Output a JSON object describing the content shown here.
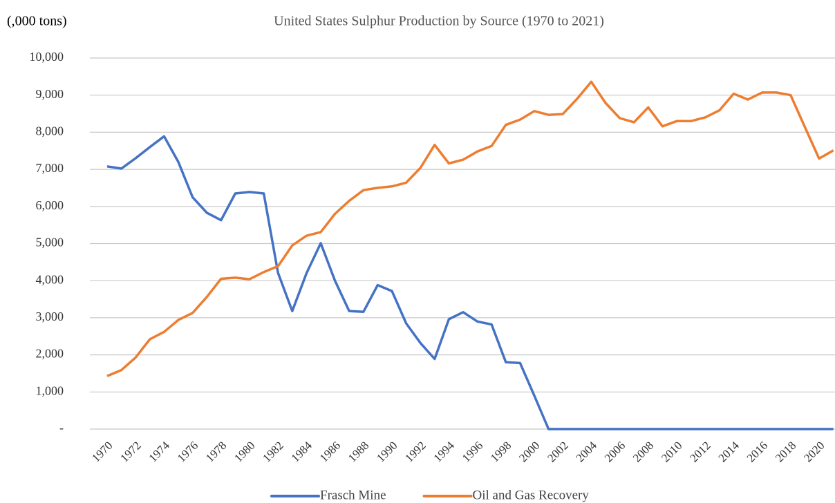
{
  "chart_data": {
    "type": "line",
    "title": "United States Sulphur Production by Source (1970 to 2021)",
    "y_label": "(,000 tons)",
    "categories": [
      "1970",
      null,
      "1972",
      null,
      "1974",
      null,
      "1976",
      null,
      "1978",
      null,
      "1980",
      null,
      "1982",
      null,
      "1984",
      null,
      "1986",
      null,
      "1988",
      null,
      "1990",
      null,
      "1992",
      null,
      "1994",
      null,
      "1996",
      null,
      "1998",
      null,
      "2000",
      null,
      "2002",
      null,
      "2004",
      null,
      "2006",
      null,
      "2008",
      null,
      "2010",
      null,
      "2012",
      null,
      "2014",
      null,
      "2016",
      null,
      "2018",
      null,
      "2020",
      null
    ],
    "series": [
      {
        "name": "Frasch Mine",
        "color": "#4472c4",
        "values": [
          7080,
          7020,
          7300,
          7600,
          7890,
          7200,
          6250,
          5830,
          5630,
          6350,
          6390,
          6350,
          4210,
          3180,
          4200,
          5010,
          4000,
          3180,
          3160,
          3880,
          3720,
          2850,
          2320,
          1890,
          2960,
          3150,
          2900,
          2820,
          1800,
          1780,
          900,
          0,
          0,
          0,
          0,
          0,
          0,
          0,
          0,
          0,
          0,
          0,
          0,
          0,
          0,
          0,
          0,
          0,
          0,
          0,
          0,
          0
        ]
      },
      {
        "name": "Oil and Gas Recovery",
        "color": "#ed7d31",
        "values": [
          1430,
          1590,
          1930,
          2420,
          2620,
          2940,
          3130,
          3560,
          4050,
          4080,
          4040,
          4230,
          4390,
          4950,
          5210,
          5310,
          5800,
          6150,
          6440,
          6500,
          6540,
          6640,
          7040,
          7660,
          7160,
          7260,
          7480,
          7630,
          8200,
          8340,
          8570,
          8470,
          8490,
          8900,
          9360,
          8790,
          8380,
          8270,
          8670,
          8160,
          8300,
          8300,
          8400,
          8590,
          9040,
          8880,
          9070,
          9070,
          9000,
          8140,
          7290,
          7510
        ]
      }
    ],
    "ylim": [
      0,
      10000
    ],
    "yticks": [
      {
        "value": 0,
        "label": "-"
      },
      {
        "value": 1000,
        "label": "1,000"
      },
      {
        "value": 2000,
        "label": "2,000"
      },
      {
        "value": 3000,
        "label": "3,000"
      },
      {
        "value": 4000,
        "label": "4,000"
      },
      {
        "value": 5000,
        "label": "5,000"
      },
      {
        "value": 6000,
        "label": "6,000"
      },
      {
        "value": 7000,
        "label": "7,000"
      },
      {
        "value": 8000,
        "label": "8,000"
      },
      {
        "value": 9000,
        "label": "9,000"
      },
      {
        "value": 10000,
        "label": "10,000"
      }
    ],
    "grid": true,
    "legend": "bottom"
  }
}
